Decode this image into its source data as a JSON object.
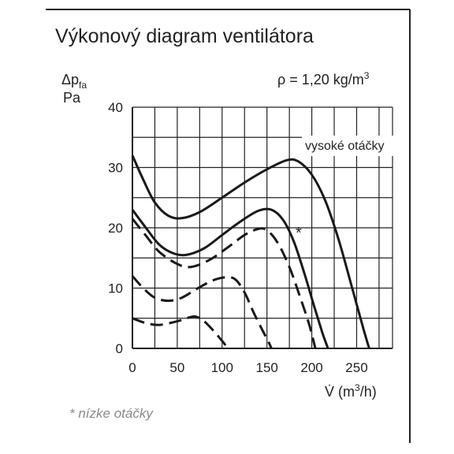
{
  "chart_data": {
    "type": "line",
    "title": "Výkonový diagram ventilátora",
    "density": "ρ = 1,20 kg/m",
    "density_exp": "3",
    "ylabel": {
      "delta": "Δp",
      "sub": "fa",
      "unit": "Pa"
    },
    "xlabel": {
      "prefix": "V̇ (m",
      "exp": "3",
      "suffix": "/h)"
    },
    "xlim": [
      0,
      290
    ],
    "ylim": [
      0,
      40
    ],
    "xticks": [
      0,
      50,
      100,
      150,
      200,
      250
    ],
    "yticks": [
      0,
      10,
      20,
      30,
      40
    ],
    "grid": true,
    "annotations": {
      "high_speed": "vysoké otáčky",
      "asterisk": "*"
    },
    "footnote": "* nízke otáčky",
    "series": [
      {
        "style": "solid",
        "points": [
          [
            0,
            32
          ],
          [
            12,
            28
          ],
          [
            25,
            24.2
          ],
          [
            40,
            22
          ],
          [
            55,
            21.6
          ],
          [
            75,
            22.6
          ],
          [
            100,
            25
          ],
          [
            125,
            27.5
          ],
          [
            150,
            29.7
          ],
          [
            172,
            31.2
          ],
          [
            185,
            31
          ],
          [
            200,
            28.8
          ],
          [
            215,
            24.5
          ],
          [
            230,
            18
          ],
          [
            245,
            10
          ],
          [
            258,
            3
          ],
          [
            264,
            0
          ]
        ]
      },
      {
        "style": "solid",
        "points": [
          [
            0,
            23
          ],
          [
            15,
            20
          ],
          [
            30,
            17.2
          ],
          [
            45,
            15.8
          ],
          [
            60,
            15.5
          ],
          [
            80,
            16.6
          ],
          [
            100,
            18.8
          ],
          [
            120,
            21
          ],
          [
            140,
            22.8
          ],
          [
            155,
            23
          ],
          [
            168,
            21.3
          ],
          [
            180,
            17.7
          ],
          [
            192,
            12.3
          ],
          [
            203,
            6.8
          ],
          [
            212,
            2.5
          ],
          [
            218,
            0
          ]
        ]
      },
      {
        "style": "dashed",
        "points": [
          [
            0,
            21.5
          ],
          [
            15,
            18.7
          ],
          [
            30,
            16
          ],
          [
            50,
            14
          ],
          [
            65,
            13.5
          ],
          [
            85,
            14.6
          ],
          [
            105,
            16.6
          ],
          [
            125,
            18.8
          ],
          [
            140,
            19.8
          ],
          [
            150,
            19.6
          ],
          [
            162,
            17.5
          ],
          [
            175,
            13.5
          ],
          [
            187,
            8.5
          ],
          [
            197,
            4
          ],
          [
            204,
            0
          ]
        ]
      },
      {
        "style": "dashed",
        "points": [
          [
            0,
            12
          ],
          [
            12,
            10
          ],
          [
            25,
            8.4
          ],
          [
            40,
            7.9
          ],
          [
            55,
            8.4
          ],
          [
            72,
            9.9
          ],
          [
            90,
            11.3
          ],
          [
            105,
            11.8
          ],
          [
            115,
            11.4
          ],
          [
            125,
            9.3
          ],
          [
            135,
            6
          ],
          [
            145,
            3
          ],
          [
            152,
            1
          ],
          [
            155,
            0
          ]
        ]
      },
      {
        "style": "dashed",
        "points": [
          [
            0,
            5
          ],
          [
            15,
            4.2
          ],
          [
            30,
            3.9
          ],
          [
            50,
            4.5
          ],
          [
            65,
            5.2
          ],
          [
            72,
            5.2
          ],
          [
            80,
            4.5
          ],
          [
            90,
            3
          ],
          [
            98,
            1.6
          ],
          [
            104,
            0.5
          ],
          [
            106,
            0
          ]
        ]
      }
    ]
  }
}
